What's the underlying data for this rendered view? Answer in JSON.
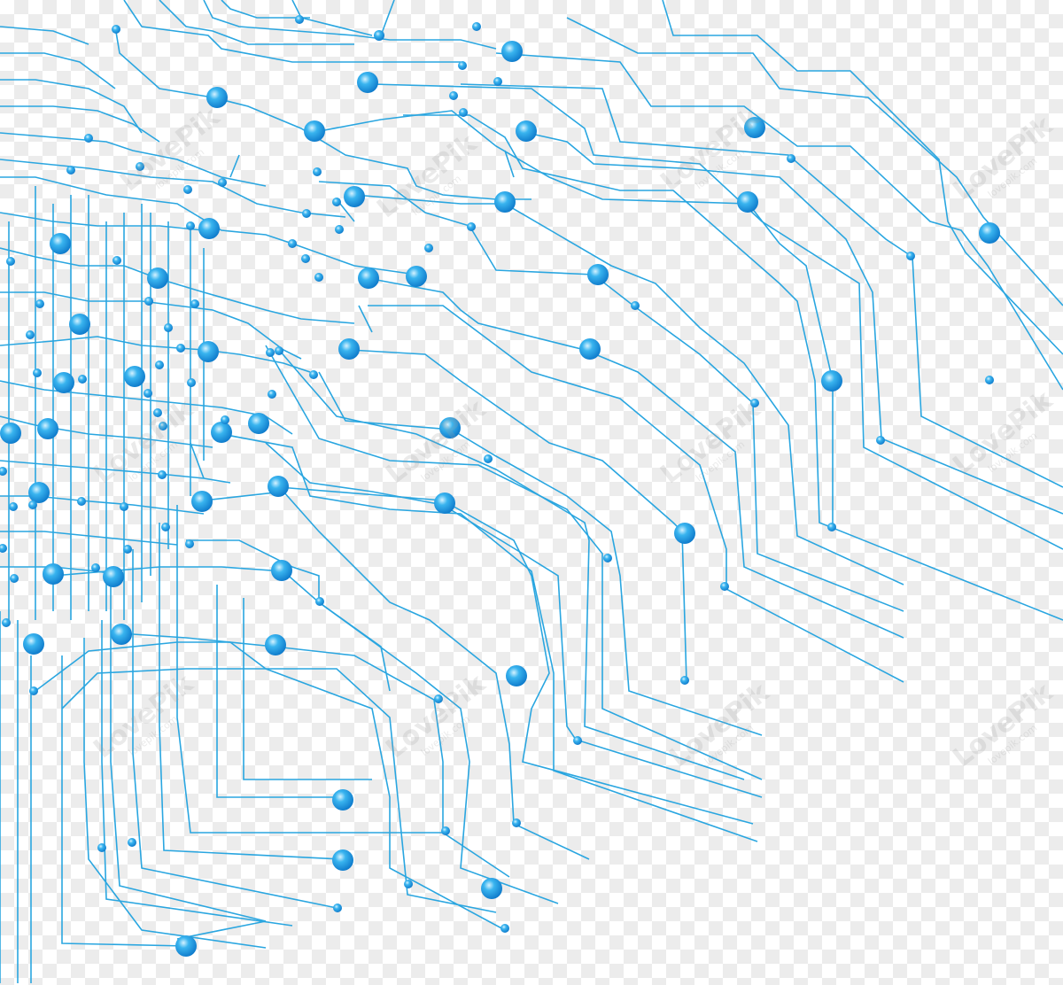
{
  "image": {
    "subject": "blue circuit board traces",
    "trace_color": "#2aa6e0",
    "node_highlight": "#d4f2ff",
    "node_mid": "#39b4ef",
    "node_dark": "#0c77c9",
    "background": "transparency checkerboard"
  },
  "watermark": {
    "brand": "LovePik",
    "site": "lovepik.com"
  }
}
